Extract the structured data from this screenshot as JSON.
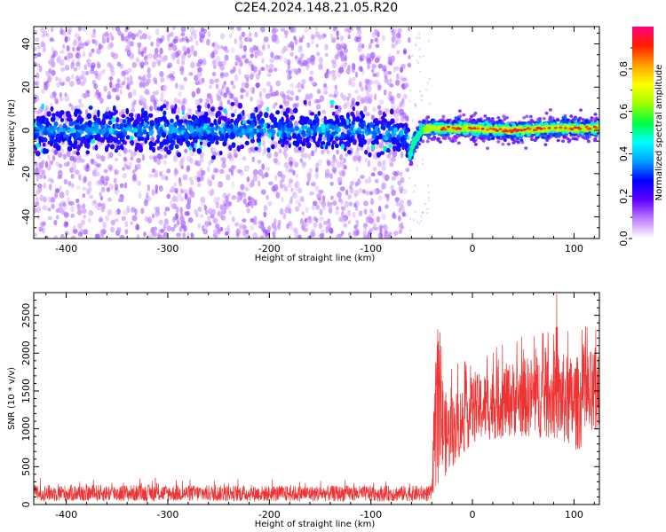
{
  "figure": {
    "title": "C2E4.2024.148.21.05.R20"
  },
  "chart_data": [
    {
      "type": "heatmap",
      "xlabel": "Height of straight line (km)",
      "ylabel": "Frequency (Hz)",
      "xlim": [
        -432,
        125
      ],
      "ylim": [
        -50,
        48
      ],
      "xticks": [
        -400,
        -300,
        -200,
        -100,
        0,
        100
      ],
      "yticks": [
        -40,
        -20,
        0,
        20,
        40
      ],
      "grid": false,
      "ridge": [
        {
          "x": -430,
          "y": 0
        },
        {
          "x": -300,
          "y": 0
        },
        {
          "x": -200,
          "y": 0
        },
        {
          "x": -100,
          "y": 0
        },
        {
          "x": -65,
          "y": -2
        },
        {
          "x": -62,
          "y": -12
        },
        {
          "x": -58,
          "y": -6
        },
        {
          "x": -50,
          "y": 0
        },
        {
          "x": -40,
          "y": 1
        },
        {
          "x": -20,
          "y": 1
        },
        {
          "x": 0,
          "y": 1
        },
        {
          "x": 40,
          "y": 0
        },
        {
          "x": 80,
          "y": 1
        },
        {
          "x": 125,
          "y": 1
        }
      ],
      "colorbar": {
        "label": "Normalized spectral amplitude",
        "range": [
          0.0,
          1.0
        ],
        "ticks": [
          0.0,
          0.2,
          0.4,
          0.6,
          0.8
        ],
        "colors": [
          "#ffffff",
          "#c080ff",
          "#6000ff",
          "#0000ff",
          "#00a0ff",
          "#00ffff",
          "#00ff40",
          "#a0ff00",
          "#ffff00",
          "#ffa000",
          "#ff2000",
          "#ff0080"
        ]
      }
    },
    {
      "type": "line",
      "xlabel": "Height of straight line (km)",
      "ylabel": "SNR (10 * v/v)",
      "xlim": [
        -432,
        125
      ],
      "ylim": [
        0,
        2800
      ],
      "xticks": [
        -400,
        -300,
        -200,
        -100,
        0,
        100
      ],
      "yticks": [
        0,
        500,
        1000,
        1500,
        2000,
        2500
      ],
      "grid": false,
      "color": "#ee3333",
      "envelope": [
        {
          "x": -432,
          "lo": 40,
          "hi": 260
        },
        {
          "x": -300,
          "lo": 40,
          "hi": 260
        },
        {
          "x": -200,
          "lo": 40,
          "hi": 250
        },
        {
          "x": -100,
          "lo": 40,
          "hi": 250
        },
        {
          "x": -40,
          "lo": 40,
          "hi": 250
        },
        {
          "x": -36,
          "lo": 200,
          "hi": 2250
        },
        {
          "x": -25,
          "lo": 400,
          "hi": 1400
        },
        {
          "x": 0,
          "lo": 800,
          "hi": 1700
        },
        {
          "x": 40,
          "lo": 900,
          "hi": 1900
        },
        {
          "x": 80,
          "lo": 850,
          "hi": 2050
        },
        {
          "x": 100,
          "lo": 700,
          "hi": 1950
        },
        {
          "x": 125,
          "lo": 800,
          "hi": 2100
        }
      ],
      "peak": {
        "x": 83,
        "y": 2780
      }
    }
  ]
}
